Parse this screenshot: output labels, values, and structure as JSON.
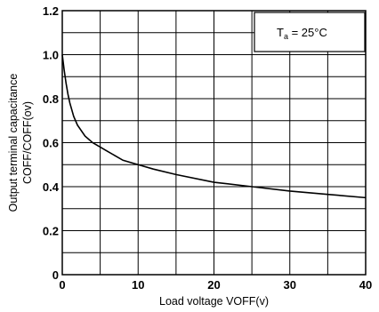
{
  "chart_data": {
    "type": "line",
    "xlabel": "Load voltage VOFF(v)",
    "ylabel_line1": "Output terminal capacitance",
    "ylabel_line2": "COFF/COFF(ov)",
    "annotation": {
      "symbol": "T",
      "subscript": "a",
      "text": " = 25°C"
    },
    "xlim": [
      0,
      40
    ],
    "ylim": [
      0,
      1.2
    ],
    "x_ticks": [
      0,
      10,
      20,
      30,
      40
    ],
    "x_tick_labels": [
      "0",
      "10",
      "20",
      "30",
      "40"
    ],
    "y_ticks": [
      0,
      0.2,
      0.4,
      0.6,
      0.8,
      1.0,
      1.2
    ],
    "y_tick_labels": [
      "0",
      "0.2",
      "0.4",
      "0.6",
      "0.8",
      "1.0",
      "1.2"
    ],
    "grid": true,
    "series": [
      {
        "x": [
          0,
          0.25,
          0.5,
          0.75,
          1,
          1.5,
          2,
          3,
          4,
          5,
          6,
          8,
          10,
          12,
          15,
          20,
          25,
          30,
          35,
          40
        ],
        "y": [
          1.0,
          0.93,
          0.87,
          0.82,
          0.78,
          0.72,
          0.68,
          0.63,
          0.6,
          0.58,
          0.56,
          0.52,
          0.5,
          0.48,
          0.455,
          0.42,
          0.4,
          0.38,
          0.365,
          0.35
        ]
      }
    ]
  }
}
